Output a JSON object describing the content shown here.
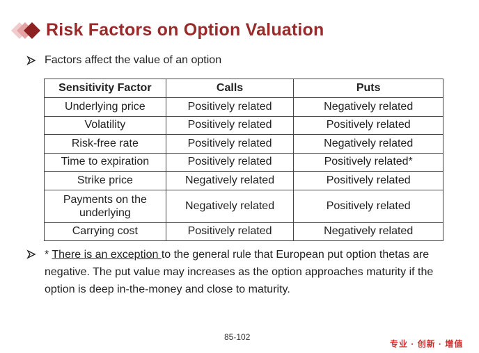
{
  "title": "Risk Factors on Option Valuation",
  "bullet1": "Factors affect the value of an option",
  "table": {
    "headers": [
      "Sensitivity Factor",
      "Calls",
      "Puts"
    ],
    "rows": [
      [
        "Underlying price",
        "Positively related",
        "Negatively related"
      ],
      [
        "Volatility",
        "Positively related",
        "Positively related"
      ],
      [
        "Risk-free rate",
        "Positively related",
        "Negatively related"
      ],
      [
        "Time to expiration",
        "Positively related",
        "Positively related*"
      ],
      [
        "Strike price",
        "Negatively related",
        "Positively related"
      ],
      [
        "Payments on the underlying",
        "Negatively related",
        "Positively related"
      ],
      [
        "Carrying cost",
        "Positively related",
        "Negatively related"
      ]
    ]
  },
  "note": {
    "prefix": "* ",
    "link": "There is an exception ",
    "rest": "to the general rule that European put option thetas are negative. The put value may increases as the option approaches maturity if the option is deep in-the-money and close to maturity."
  },
  "page_number": "85-102",
  "brand_text": "专业 · 创新 · 增值",
  "colors": {
    "title": "#9a2a2a",
    "brand": "#d42a2a",
    "logo_dark": "#8e2222",
    "logo_light": "#e8b4b4"
  }
}
